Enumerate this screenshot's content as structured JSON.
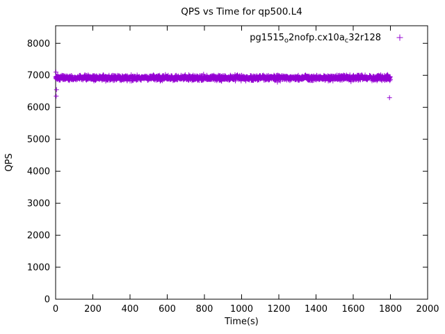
{
  "page": {
    "background": "#ffffff"
  },
  "chart_data": {
    "type": "scatter",
    "title": "QPS vs Time for qp500.L4",
    "xlabel": "Time(s)",
    "ylabel": "QPS",
    "xlim": [
      0,
      2000
    ],
    "ylim": [
      0,
      8550
    ],
    "xticks": [
      0,
      200,
      400,
      600,
      800,
      1000,
      1200,
      1400,
      1600,
      1800,
      2000
    ],
    "yticks": [
      0,
      1000,
      2000,
      3000,
      4000,
      5000,
      6000,
      7000,
      8000
    ],
    "grid": false,
    "border": true,
    "tick_style": "inward-mirrored",
    "marker": "plus",
    "marker_size": 7,
    "color": "#9400D3",
    "axis_color": "#000000",
    "legend": {
      "position": "top-right-inside",
      "sample_side": "right"
    },
    "series": [
      {
        "name": "pg1515_o2nofp.cx10a_c32r128",
        "label_parts": [
          {
            "text": "pg1515"
          },
          {
            "text": "o",
            "sub": true
          },
          {
            "text": "2nofp.cx10a"
          },
          {
            "text": "c",
            "sub": true
          },
          {
            "text": "32r128"
          }
        ],
        "band": {
          "x_start": 0,
          "x_end": 1800,
          "n_points": 1800,
          "y_center": 6920,
          "y_spread": 115,
          "seed": 1515
        },
        "outliers": [
          [
            3,
            6350
          ],
          [
            5,
            6550
          ],
          [
            2,
            7100
          ],
          [
            1795,
            6300
          ]
        ]
      }
    ]
  }
}
